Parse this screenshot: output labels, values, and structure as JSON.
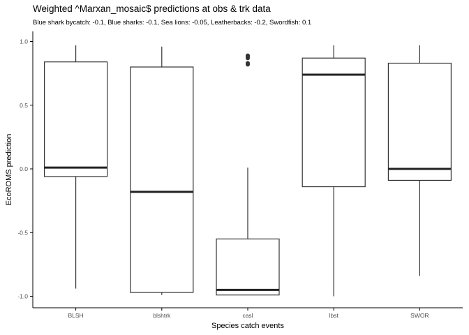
{
  "chart_data": {
    "type": "boxplot",
    "title": "Weighted ^Marxan_mosaic$ predictions at obs & trk data",
    "subtitle": "Blue shark bycatch: -0.1, Blue sharks: -0.1, Sea lions: -0.05, Leatherbacks: -0.2, Swordfish: 0.1",
    "xlabel": "Species catch events",
    "ylabel": "EcoROMS prediction",
    "ylim": [
      -1.1,
      1.05
    ],
    "yticks": [
      1.0,
      0.5,
      0.0,
      -0.5,
      -1.0
    ],
    "ytick_labels": [
      "1.0",
      "0.5",
      "0.0",
      "-0.5",
      "-1.0"
    ],
    "categories": [
      "BLSH",
      "blshtrk",
      "casl",
      "lbst",
      "SWOR"
    ],
    "boxes": [
      {
        "category": "BLSH",
        "whisker_low": -0.94,
        "q1": -0.06,
        "median": 0.01,
        "q3": 0.84,
        "whisker_high": 0.97,
        "outliers": []
      },
      {
        "category": "blshtrk",
        "whisker_low": -0.99,
        "q1": -0.97,
        "median": -0.18,
        "q3": 0.8,
        "whisker_high": 0.96,
        "outliers": []
      },
      {
        "category": "casl",
        "whisker_low": -0.99,
        "q1": -0.99,
        "median": -0.95,
        "q3": -0.55,
        "whisker_high": 0.01,
        "outliers": [
          0.82,
          0.83,
          0.87,
          0.88,
          0.89
        ]
      },
      {
        "category": "lbst",
        "whisker_low": -1.0,
        "q1": -0.14,
        "median": 0.74,
        "q3": 0.87,
        "whisker_high": 0.97,
        "outliers": []
      },
      {
        "category": "SWOR",
        "whisker_low": -0.84,
        "q1": -0.09,
        "median": 0.0,
        "q3": 0.83,
        "whisker_high": 0.97,
        "outliers": []
      }
    ],
    "colors": {
      "box_line": "#333333",
      "median_line": "#222222",
      "axis": "#000000",
      "tick_text": "#4d4d4d"
    }
  }
}
